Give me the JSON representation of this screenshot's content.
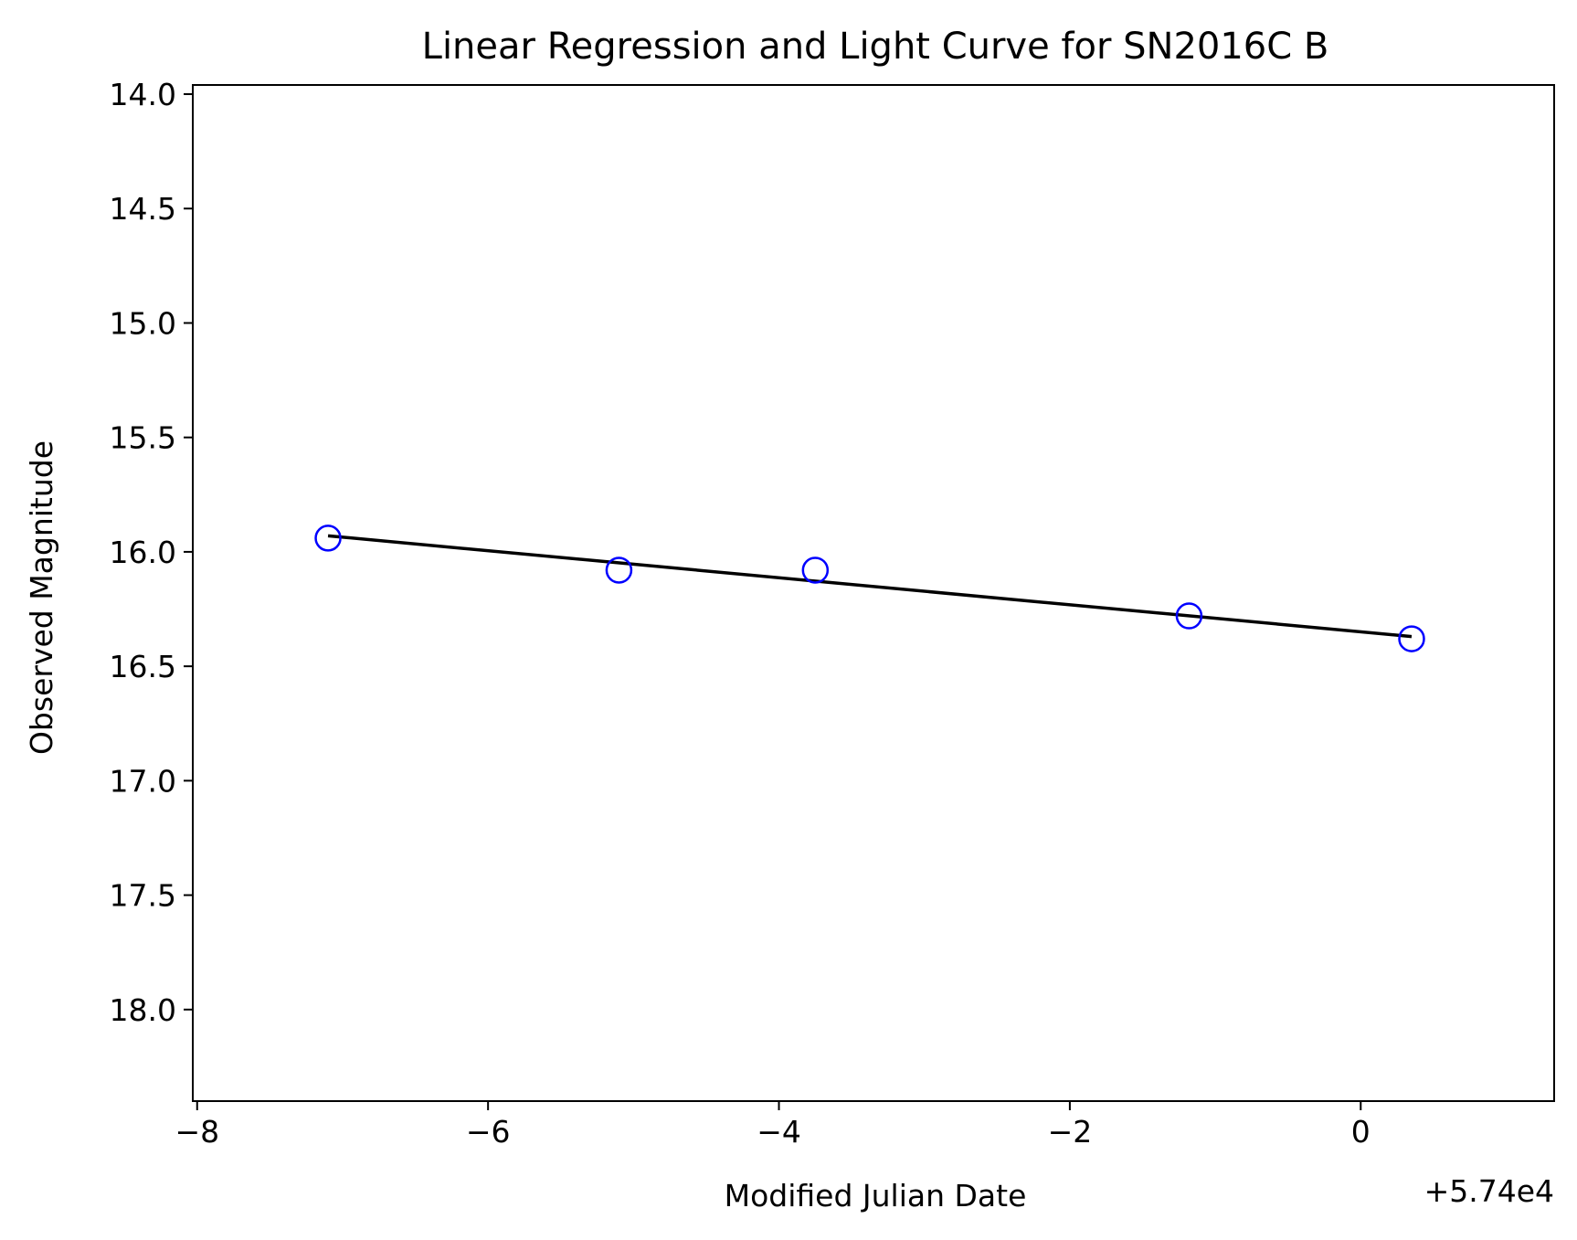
{
  "chart_data": {
    "type": "scatter",
    "title": "Linear Regression and Light Curve for SN2016C B",
    "xlabel": "Modified Julian Date",
    "ylabel": "Observed Magnitude",
    "x_offset_label": "+5.74e4",
    "xlim": [
      57391.97,
      57401.33
    ],
    "ylim": [
      18.4,
      13.96
    ],
    "y_inverted": true,
    "grid": false,
    "x_ticks": [
      {
        "value": 57392,
        "label": "−8"
      },
      {
        "value": 57394,
        "label": "−6"
      },
      {
        "value": 57396,
        "label": "−4"
      },
      {
        "value": 57398,
        "label": "−2"
      },
      {
        "value": 57400,
        "label": "0"
      }
    ],
    "y_ticks": [
      {
        "value": 14.0,
        "label": "14.0"
      },
      {
        "value": 14.5,
        "label": "14.5"
      },
      {
        "value": 15.0,
        "label": "15.0"
      },
      {
        "value": 15.5,
        "label": "15.5"
      },
      {
        "value": 16.0,
        "label": "16.0"
      },
      {
        "value": 16.5,
        "label": "16.5"
      },
      {
        "value": 17.0,
        "label": "17.0"
      },
      {
        "value": 17.5,
        "label": "17.5"
      },
      {
        "value": 18.0,
        "label": "18.0"
      }
    ],
    "series": [
      {
        "kind": "scatter",
        "marker": "open-circle",
        "color": "#0000ff",
        "points": [
          {
            "x": 57392.9,
            "y": 15.94
          },
          {
            "x": 57394.9,
            "y": 16.08
          },
          {
            "x": 57396.25,
            "y": 16.08
          },
          {
            "x": 57398.82,
            "y": 16.28
          },
          {
            "x": 57400.35,
            "y": 16.38
          }
        ]
      },
      {
        "kind": "line",
        "color": "#000000",
        "points": [
          {
            "x": 57392.9,
            "y": 15.93
          },
          {
            "x": 57400.35,
            "y": 16.37
          }
        ]
      }
    ]
  }
}
